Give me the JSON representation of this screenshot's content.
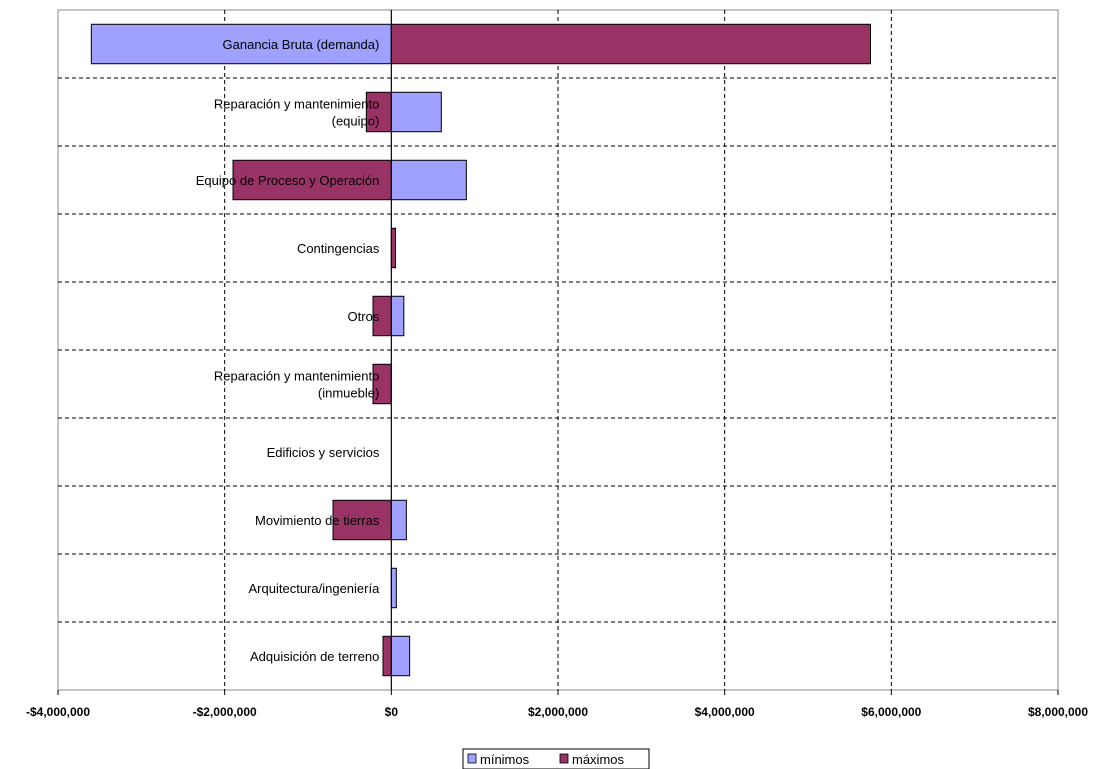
{
  "chart_data": {
    "type": "bar",
    "orientation": "horizontal",
    "style": "tornado",
    "categories": [
      [
        "Ganancia Bruta (demanda)"
      ],
      [
        "Reparación y mantenimiento",
        "(equipo)"
      ],
      [
        "Equipo de Proceso y Operación"
      ],
      [
        "Contingencias"
      ],
      [
        "Otros"
      ],
      [
        "Reparación y mantenimiento",
        "(inmueble)"
      ],
      [
        "Edificios y servicios"
      ],
      [
        "Movimiento de tierras"
      ],
      [
        "Arquitectura/ingeniería"
      ],
      [
        "Adquisición de terreno"
      ]
    ],
    "series": [
      {
        "name": "mínimos",
        "color": "#a0a0ff",
        "values": [
          -3600000,
          600000,
          900000,
          0,
          150000,
          0,
          0,
          180000,
          60000,
          220000
        ]
      },
      {
        "name": "máximos",
        "color": "#993366",
        "values": [
          5750000,
          -300000,
          -1900000,
          50000,
          -220000,
          -220000,
          0,
          -700000,
          0,
          -100000
        ]
      }
    ],
    "xlim": [
      -4000000,
      8000000
    ],
    "xticks": [
      -4000000,
      -2000000,
      0,
      2000000,
      4000000,
      6000000,
      8000000
    ],
    "xtick_labels": [
      "-$4,000,000",
      "-$2,000,000",
      "$0",
      "$2,000,000",
      "$4,000,000",
      "$6,000,000",
      "$8,000,000"
    ],
    "grid": true,
    "legend": "bottom"
  }
}
